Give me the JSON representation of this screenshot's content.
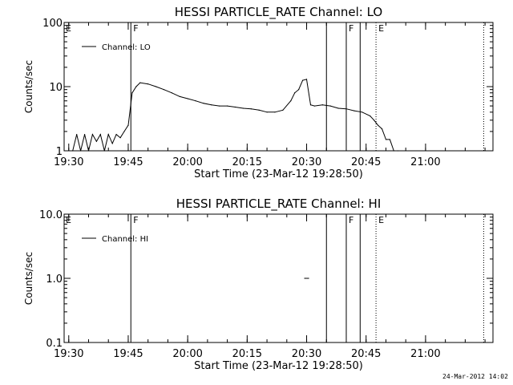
{
  "stamp": "24-Mar-2012 14:02",
  "chart_data": [
    {
      "type": "line",
      "title": "HESSI PARTICLE_RATE Channel: LO",
      "xlabel": "Start Time (23-Mar-12 19:28:50)",
      "ylabel": "Counts/sec",
      "yscale": "log",
      "ylim": [
        1,
        100
      ],
      "yticks": [
        {
          "v": 1,
          "label": "1"
        },
        {
          "v": 10,
          "label": "10"
        },
        {
          "v": 100,
          "label": "100"
        }
      ],
      "xlim": [
        "19:28:50",
        "21:17:00"
      ],
      "xticks": [
        "19:30",
        "19:45",
        "20:00",
        "20:15",
        "20:30",
        "20:45",
        "21:00"
      ],
      "legend_location": "upper left",
      "series": [
        {
          "name": "Channel: LO",
          "x": [
            "19:31",
            "19:32",
            "19:33",
            "19:34",
            "19:35",
            "19:36",
            "19:37",
            "19:38",
            "19:39",
            "19:40",
            "19:41",
            "19:42",
            "19:43",
            "19:44",
            "19:45",
            "19:46",
            "19:47",
            "19:48",
            "19:50",
            "19:52",
            "19:54",
            "19:56",
            "19:58",
            "20:00",
            "20:02",
            "20:04",
            "20:06",
            "20:08",
            "20:10",
            "20:12",
            "20:14",
            "20:16",
            "20:18",
            "20:20",
            "20:22",
            "20:24",
            "20:26",
            "20:27",
            "20:28",
            "20:29",
            "20:30",
            "20:31",
            "20:32",
            "20:34",
            "20:36",
            "20:38",
            "20:40",
            "20:42",
            "20:44",
            "20:46",
            "20:47",
            "20:48",
            "20:49",
            "20:50",
            "20:51",
            "20:52",
            "20:53"
          ],
          "y": [
            1,
            1.8,
            1,
            1.8,
            1,
            1.8,
            1.4,
            1.8,
            1,
            1.8,
            1.3,
            1.8,
            1.6,
            2,
            2.5,
            8,
            10,
            11.5,
            11,
            10,
            9,
            8,
            7,
            6.5,
            6,
            5.5,
            5.2,
            5,
            5,
            4.8,
            4.6,
            4.5,
            4.3,
            4,
            4,
            4.3,
            6,
            8,
            9,
            12.5,
            13,
            5.2,
            5,
            5.2,
            5,
            4.6,
            4.5,
            4.2,
            4,
            3.5,
            3,
            2.5,
            2.2,
            1.5,
            1.5,
            1,
            1
          ]
        }
      ],
      "markers": [
        {
          "t": "19:45:40",
          "label": "F",
          "style": "solid"
        },
        {
          "t": "20:35:00",
          "label": "",
          "style": "solid"
        },
        {
          "t": "20:40:00",
          "label": "F",
          "style": "solid"
        },
        {
          "t": "20:43:30",
          "label": "",
          "style": "solid"
        },
        {
          "t": "20:47:30",
          "label": "E",
          "style": "dotted"
        },
        {
          "t": "21:14:40",
          "label": "",
          "style": "dotted"
        }
      ],
      "edge_label": "E"
    },
    {
      "type": "line",
      "title": "HESSI PARTICLE_RATE Channel: HI",
      "xlabel": "Start Time (23-Mar-12 19:28:50)",
      "ylabel": "Counts/sec",
      "yscale": "log",
      "ylim": [
        0.1,
        10
      ],
      "yticks": [
        {
          "v": 0.1,
          "label": "0.1"
        },
        {
          "v": 1,
          "label": "1.0"
        },
        {
          "v": 10,
          "label": "10.0"
        }
      ],
      "xlim": [
        "19:28:50",
        "21:17:00"
      ],
      "xticks": [
        "19:30",
        "19:45",
        "20:00",
        "20:15",
        "20:30",
        "20:45",
        "21:00"
      ],
      "legend_location": "upper left",
      "series": [
        {
          "name": "Channel: HI",
          "x": [
            "20:29:30",
            "20:30:30"
          ],
          "y": [
            1,
            1
          ]
        }
      ],
      "markers": [
        {
          "t": "19:45:40",
          "label": "F",
          "style": "solid"
        },
        {
          "t": "20:35:00",
          "label": "",
          "style": "solid"
        },
        {
          "t": "20:40:00",
          "label": "F",
          "style": "solid"
        },
        {
          "t": "20:43:30",
          "label": "",
          "style": "solid"
        },
        {
          "t": "20:47:30",
          "label": "E",
          "style": "dotted"
        },
        {
          "t": "21:14:40",
          "label": "",
          "style": "dotted"
        }
      ],
      "edge_label": "E"
    }
  ]
}
